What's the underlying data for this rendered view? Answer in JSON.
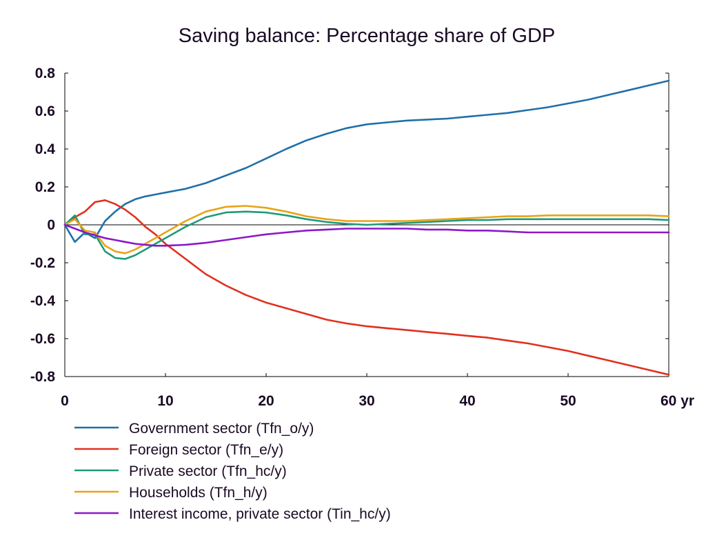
{
  "chart_data": {
    "type": "line",
    "title": "Saving balance: Percentage share of GDP",
    "xlim": [
      0,
      60
    ],
    "ylim": [
      -0.8,
      0.8
    ],
    "x_ticks": [
      0,
      10,
      20,
      30,
      40,
      50,
      60
    ],
    "x_tick_labels": [
      "0",
      "10",
      "20",
      "30",
      "40",
      "50",
      "60 yr"
    ],
    "y_ticks": [
      -0.8,
      -0.6,
      -0.4,
      -0.2,
      0,
      0.2,
      0.4,
      0.6,
      0.8
    ],
    "y_tick_labels": [
      "-0.8",
      "-0.6",
      "-0.4",
      "-0.2",
      "0",
      "0.2",
      "0.4",
      "0.6",
      "0.8"
    ],
    "grid": false,
    "zero_line": true,
    "legend_position": "bottom",
    "x": [
      0,
      1,
      2,
      3,
      4,
      5,
      6,
      7,
      8,
      9,
      10,
      12,
      14,
      16,
      18,
      20,
      22,
      24,
      26,
      28,
      30,
      32,
      34,
      36,
      38,
      40,
      42,
      44,
      46,
      48,
      50,
      52,
      54,
      56,
      58,
      60
    ],
    "series": [
      {
        "name": "Government sector (Tfn_o/y)",
        "color": "#1f6fa8",
        "values": [
          0,
          -0.09,
          -0.04,
          -0.07,
          0.02,
          0.07,
          0.11,
          0.135,
          0.15,
          0.16,
          0.17,
          0.19,
          0.22,
          0.26,
          0.3,
          0.35,
          0.4,
          0.445,
          0.48,
          0.51,
          0.53,
          0.54,
          0.55,
          0.555,
          0.56,
          0.57,
          0.58,
          0.59,
          0.605,
          0.62,
          0.64,
          0.66,
          0.685,
          0.71,
          0.735,
          0.76
        ]
      },
      {
        "name": "Foreign sector (Tfn_e/y)",
        "color": "#e0301e",
        "values": [
          0,
          0.04,
          0.07,
          0.12,
          0.13,
          0.11,
          0.08,
          0.04,
          -0.01,
          -0.05,
          -0.1,
          -0.18,
          -0.26,
          -0.32,
          -0.37,
          -0.41,
          -0.44,
          -0.47,
          -0.5,
          -0.52,
          -0.535,
          -0.545,
          -0.555,
          -0.565,
          -0.575,
          -0.585,
          -0.595,
          -0.61,
          -0.625,
          -0.645,
          -0.665,
          -0.69,
          -0.715,
          -0.74,
          -0.765,
          -0.79
        ]
      },
      {
        "name": "Private sector (Tfn_hc/y)",
        "color": "#1f9a78",
        "values": [
          0,
          0.05,
          -0.05,
          -0.05,
          -0.14,
          -0.175,
          -0.18,
          -0.16,
          -0.13,
          -0.1,
          -0.07,
          -0.01,
          0.04,
          0.065,
          0.07,
          0.065,
          0.05,
          0.03,
          0.015,
          0.005,
          0,
          0.005,
          0.01,
          0.015,
          0.02,
          0.025,
          0.025,
          0.03,
          0.03,
          0.03,
          0.03,
          0.03,
          0.03,
          0.03,
          0.03,
          0.025
        ]
      },
      {
        "name": "Households (Tfn_h/y)",
        "color": "#e8a317",
        "values": [
          0,
          0.03,
          -0.03,
          -0.04,
          -0.11,
          -0.14,
          -0.15,
          -0.13,
          -0.1,
          -0.07,
          -0.04,
          0.02,
          0.07,
          0.095,
          0.1,
          0.09,
          0.07,
          0.045,
          0.03,
          0.02,
          0.02,
          0.02,
          0.02,
          0.025,
          0.03,
          0.035,
          0.04,
          0.045,
          0.045,
          0.05,
          0.05,
          0.05,
          0.05,
          0.05,
          0.05,
          0.045
        ]
      },
      {
        "name": "Interest income, private sector (Tin_hc/y)",
        "color": "#8b18c8",
        "values": [
          0,
          -0.02,
          -0.04,
          -0.055,
          -0.07,
          -0.08,
          -0.09,
          -0.1,
          -0.105,
          -0.11,
          -0.11,
          -0.105,
          -0.095,
          -0.08,
          -0.065,
          -0.05,
          -0.04,
          -0.03,
          -0.025,
          -0.02,
          -0.02,
          -0.02,
          -0.02,
          -0.025,
          -0.025,
          -0.03,
          -0.03,
          -0.035,
          -0.04,
          -0.04,
          -0.04,
          -0.04,
          -0.04,
          -0.04,
          -0.04,
          -0.04
        ]
      }
    ]
  }
}
